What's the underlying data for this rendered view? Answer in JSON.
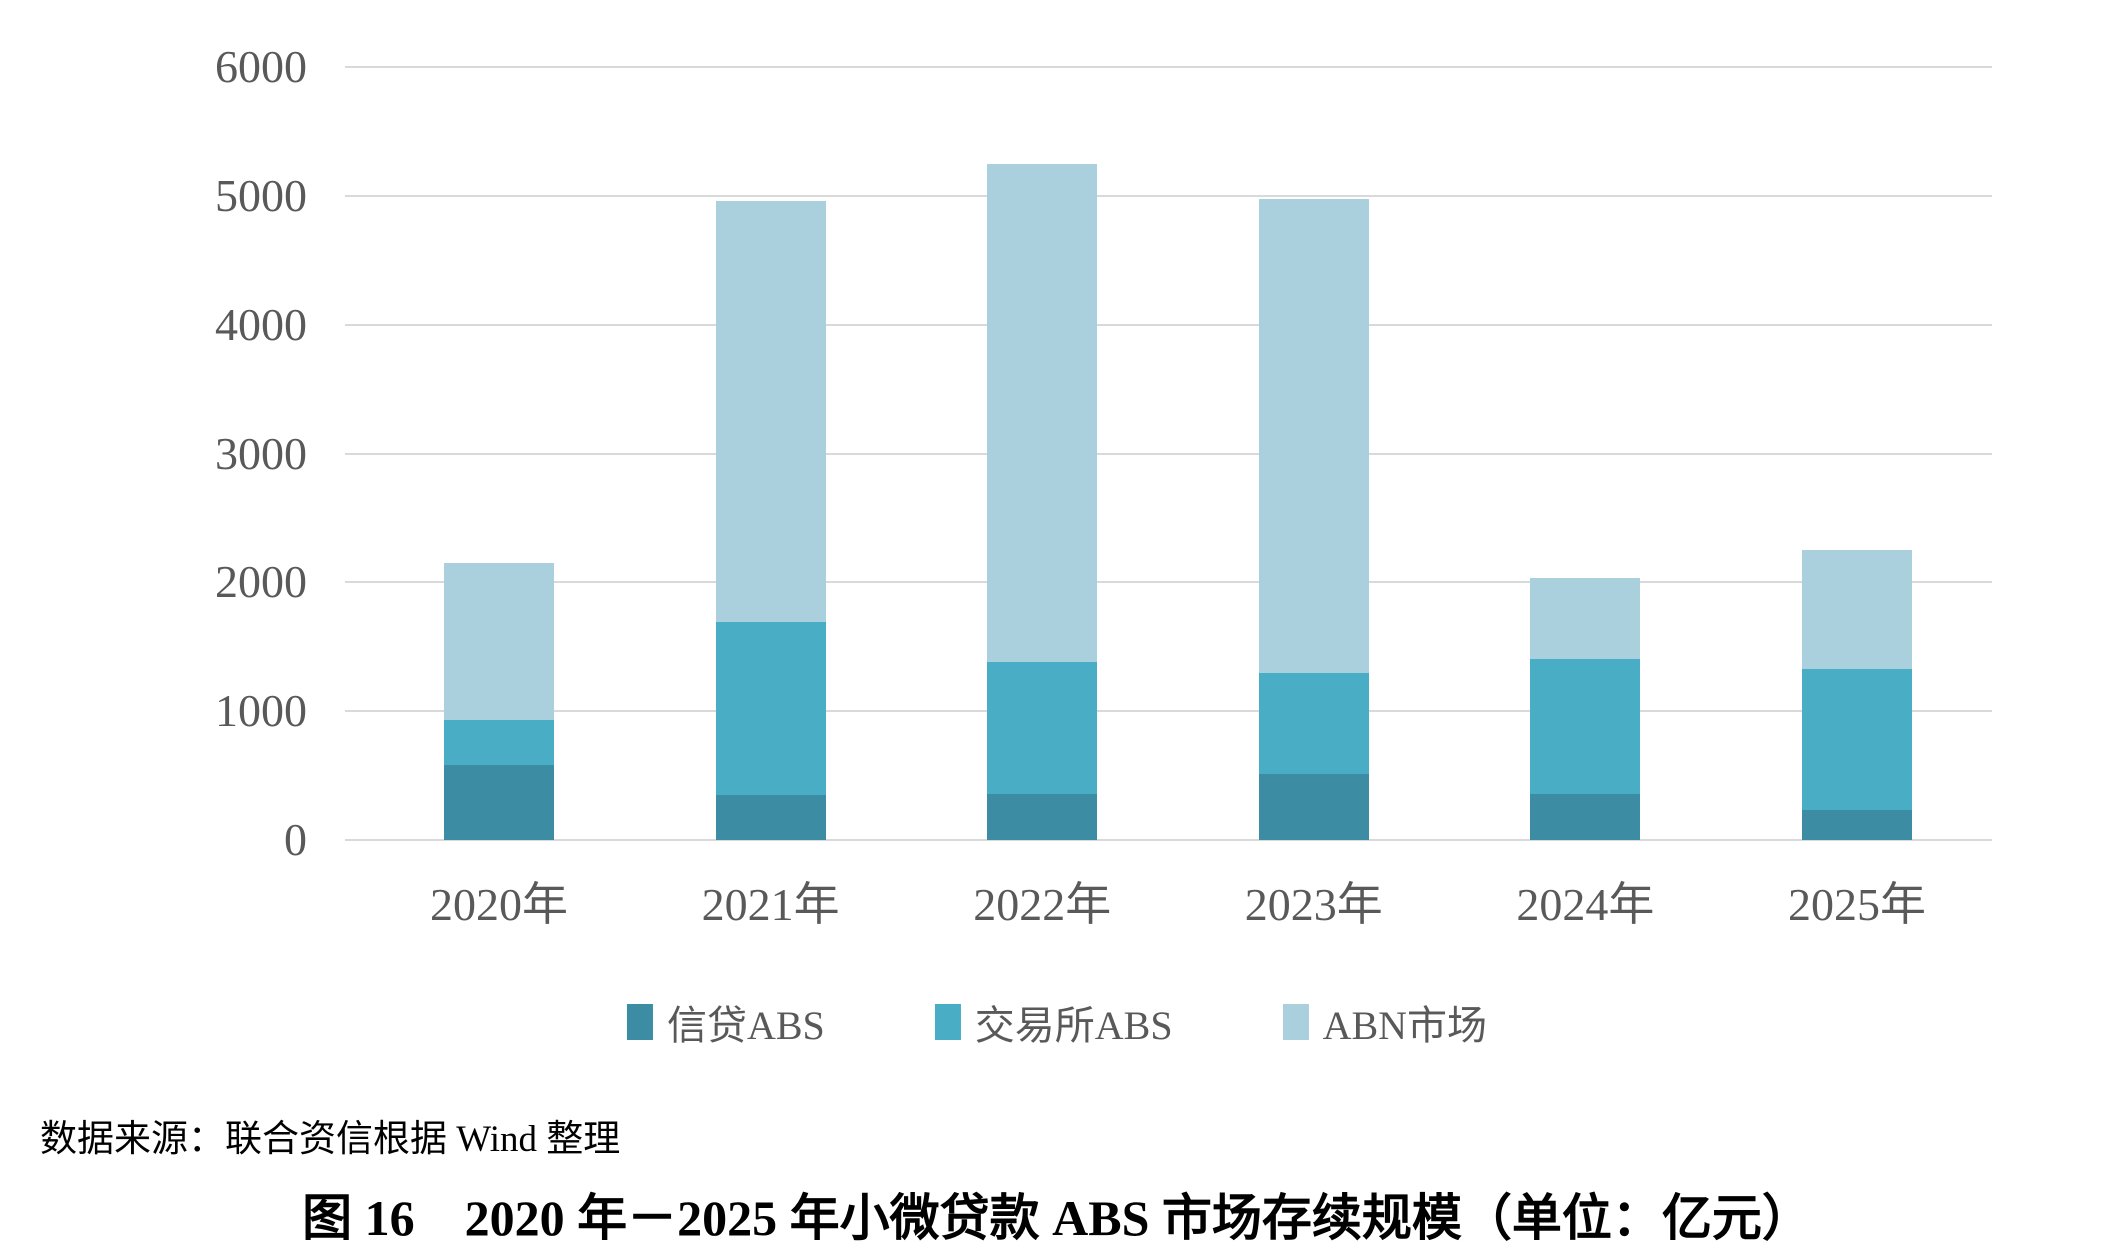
{
  "chart_data": {
    "type": "bar",
    "stacked": true,
    "title": "图 16　2020 年－2025 年小微贷款 ABS 市场存续规模（单位：亿元）",
    "categories": [
      "2020年",
      "2021年",
      "2022年",
      "2023年",
      "2024年",
      "2025年"
    ],
    "series": [
      {
        "name": "信贷ABS",
        "color": "#3c8da3",
        "values": [
          580,
          350,
          355,
          510,
          355,
          235
        ]
      },
      {
        "name": "交易所ABS",
        "color": "#4aadc6",
        "values": [
          350,
          1345,
          1025,
          790,
          1050,
          1095
        ]
      },
      {
        "name": "ABN市场",
        "color": "#aacfdd",
        "values": [
          1220,
          3265,
          3865,
          3675,
          630,
          920
        ]
      }
    ],
    "totals": [
      2150,
      4960,
      5245,
      4975,
      2035,
      2250
    ],
    "xlabel": "",
    "ylabel": "",
    "ylim": [
      0,
      6000
    ],
    "ytick_step": 1000,
    "yticks": [
      "0",
      "1000",
      "2000",
      "3000",
      "4000",
      "5000",
      "6000"
    ],
    "grid": true,
    "legend_position": "bottom",
    "gridline_color": "#d9d9d9",
    "axis_text_color": "#595959"
  },
  "footer": {
    "source": "数据来源：联合资信根据 Wind 整理",
    "caption": "图 16　2020 年－2025 年小微贷款 ABS 市场存续规模（单位：亿元）"
  }
}
